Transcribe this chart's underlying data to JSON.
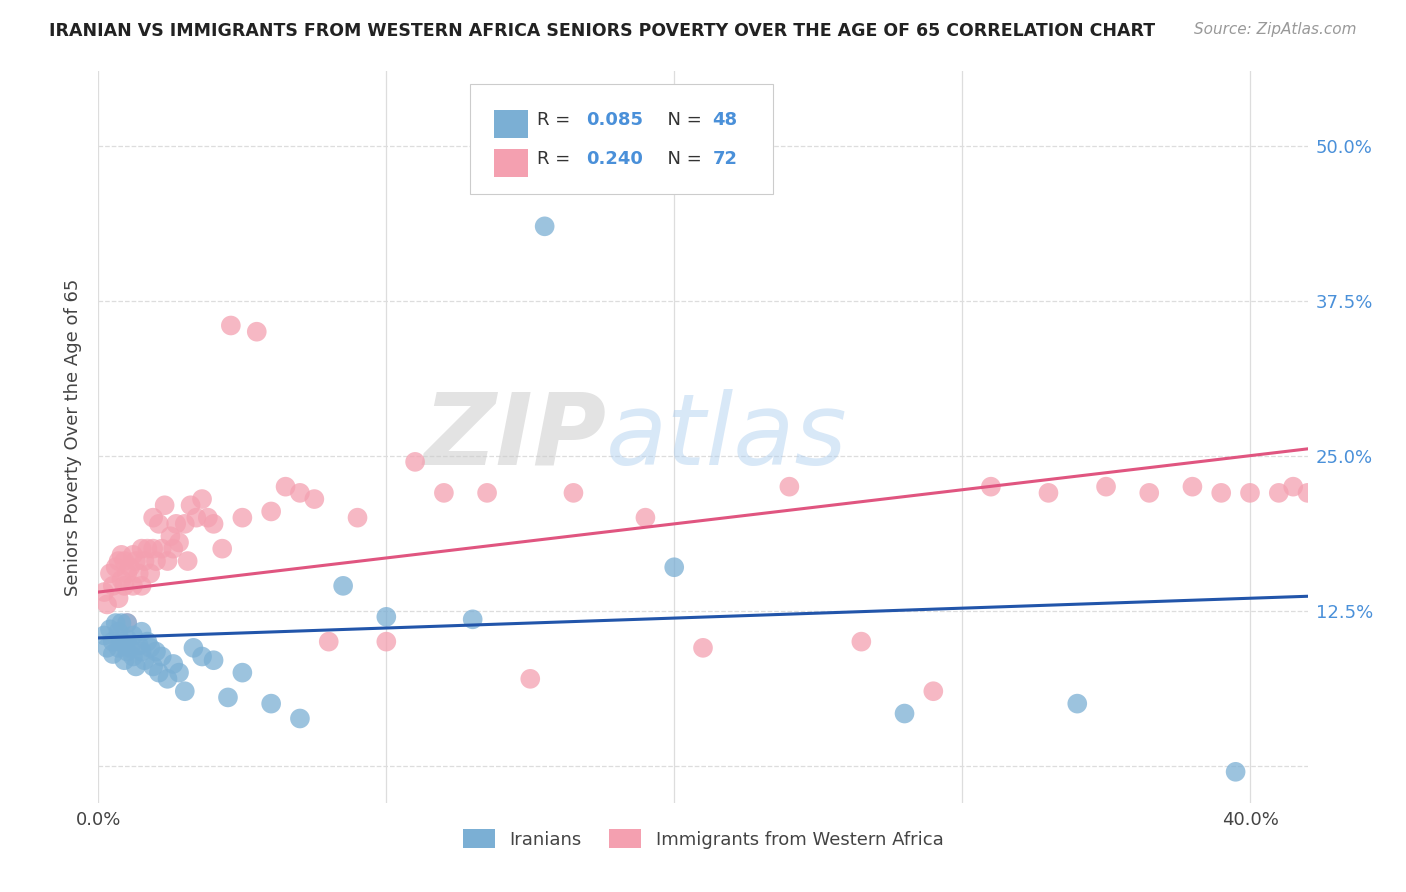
{
  "title": "IRANIAN VS IMMIGRANTS FROM WESTERN AFRICA SENIORS POVERTY OVER THE AGE OF 65 CORRELATION CHART",
  "source": "Source: ZipAtlas.com",
  "ylabel": "Seniors Poverty Over the Age of 65",
  "xmin": 0.0,
  "xmax": 0.42,
  "ymin": -0.03,
  "ymax": 0.56,
  "yticks": [
    0.0,
    0.125,
    0.25,
    0.375,
    0.5
  ],
  "ytick_labels": [
    "",
    "12.5%",
    "25.0%",
    "37.5%",
    "50.0%"
  ],
  "xticks": [
    0.0,
    0.1,
    0.2,
    0.3,
    0.4
  ],
  "xtick_labels": [
    "0.0%",
    "",
    "",
    "",
    "40.0%"
  ],
  "iranians_R": 0.085,
  "iranians_N": 48,
  "western_africa_R": 0.24,
  "western_africa_N": 72,
  "blue_color": "#7BAFD4",
  "pink_color": "#F4A0B0",
  "blue_line_color": "#2255AA",
  "pink_line_color": "#E05580",
  "background_color": "#FFFFFF",
  "grid_color": "#DDDDDD",
  "watermark_zip": "ZIP",
  "watermark_atlas": "atlas",
  "legend_label_1": "Iranians",
  "legend_label_2": "Immigrants from Western Africa",
  "iranians_x": [
    0.002,
    0.003,
    0.004,
    0.005,
    0.005,
    0.006,
    0.007,
    0.007,
    0.008,
    0.008,
    0.009,
    0.009,
    0.01,
    0.01,
    0.01,
    0.011,
    0.012,
    0.012,
    0.013,
    0.014,
    0.015,
    0.015,
    0.016,
    0.017,
    0.018,
    0.019,
    0.02,
    0.021,
    0.022,
    0.024,
    0.026,
    0.028,
    0.03,
    0.033,
    0.036,
    0.04,
    0.045,
    0.05,
    0.06,
    0.07,
    0.085,
    0.1,
    0.13,
    0.155,
    0.2,
    0.28,
    0.34,
    0.395
  ],
  "iranians_y": [
    0.105,
    0.095,
    0.11,
    0.1,
    0.09,
    0.115,
    0.108,
    0.095,
    0.1,
    0.115,
    0.085,
    0.098,
    0.102,
    0.092,
    0.115,
    0.095,
    0.088,
    0.105,
    0.08,
    0.097,
    0.092,
    0.108,
    0.085,
    0.1,
    0.095,
    0.08,
    0.092,
    0.075,
    0.088,
    0.07,
    0.082,
    0.075,
    0.06,
    0.095,
    0.088,
    0.085,
    0.055,
    0.075,
    0.05,
    0.038,
    0.145,
    0.12,
    0.118,
    0.435,
    0.16,
    0.042,
    0.05,
    -0.005
  ],
  "western_africa_x": [
    0.002,
    0.003,
    0.004,
    0.005,
    0.006,
    0.007,
    0.007,
    0.008,
    0.008,
    0.009,
    0.009,
    0.01,
    0.01,
    0.011,
    0.012,
    0.012,
    0.013,
    0.014,
    0.015,
    0.015,
    0.016,
    0.017,
    0.018,
    0.019,
    0.019,
    0.02,
    0.021,
    0.022,
    0.023,
    0.024,
    0.025,
    0.026,
    0.027,
    0.028,
    0.03,
    0.031,
    0.032,
    0.034,
    0.036,
    0.038,
    0.04,
    0.043,
    0.046,
    0.05,
    0.055,
    0.06,
    0.065,
    0.07,
    0.075,
    0.08,
    0.09,
    0.1,
    0.11,
    0.12,
    0.135,
    0.15,
    0.165,
    0.19,
    0.21,
    0.24,
    0.265,
    0.29,
    0.31,
    0.33,
    0.35,
    0.365,
    0.38,
    0.39,
    0.4,
    0.41,
    0.415,
    0.42
  ],
  "western_africa_y": [
    0.14,
    0.13,
    0.155,
    0.145,
    0.16,
    0.135,
    0.165,
    0.15,
    0.17,
    0.145,
    0.165,
    0.155,
    0.115,
    0.16,
    0.17,
    0.145,
    0.165,
    0.155,
    0.145,
    0.175,
    0.165,
    0.175,
    0.155,
    0.2,
    0.175,
    0.165,
    0.195,
    0.175,
    0.21,
    0.165,
    0.185,
    0.175,
    0.195,
    0.18,
    0.195,
    0.165,
    0.21,
    0.2,
    0.215,
    0.2,
    0.195,
    0.175,
    0.355,
    0.2,
    0.35,
    0.205,
    0.225,
    0.22,
    0.215,
    0.1,
    0.2,
    0.1,
    0.245,
    0.22,
    0.22,
    0.07,
    0.22,
    0.2,
    0.095,
    0.225,
    0.1,
    0.06,
    0.225,
    0.22,
    0.225,
    0.22,
    0.225,
    0.22,
    0.22,
    0.22,
    0.225,
    0.22
  ]
}
